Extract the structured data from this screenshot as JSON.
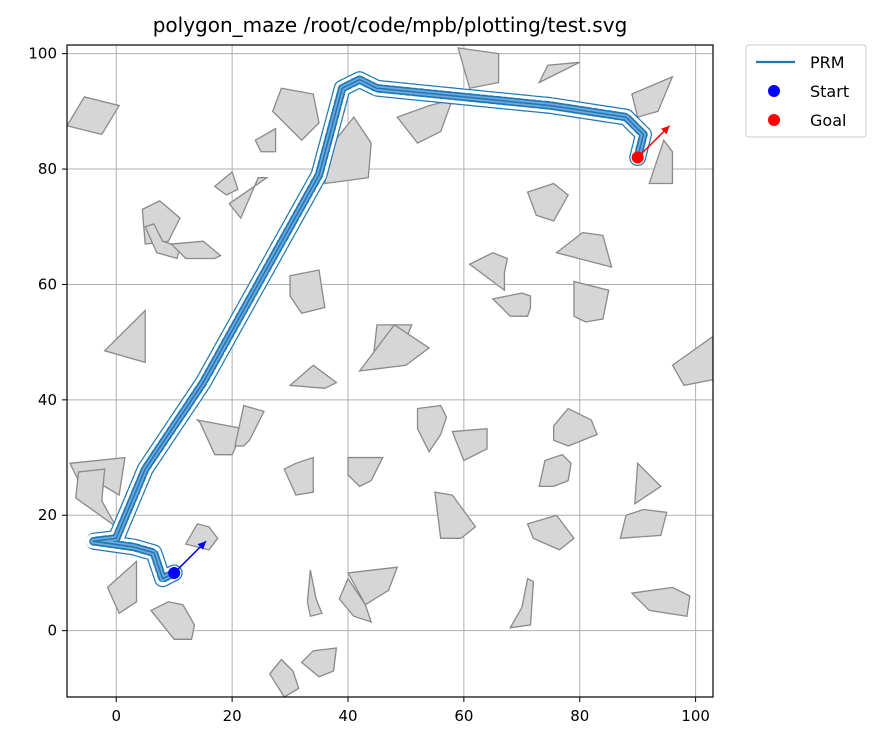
{
  "chart_data": {
    "type": "scatter",
    "title": "polygon_maze /root/code/mpb/plotting/test.svg",
    "xlabel": "",
    "ylabel": "",
    "xlim": [
      -8.5,
      103
    ],
    "ylim": [
      -11.5,
      101.5
    ],
    "xticks": [
      0,
      20,
      40,
      60,
      80,
      100
    ],
    "yticks": [
      0,
      20,
      40,
      60,
      80,
      100
    ],
    "grid": true,
    "legend_position": "outside-top-right",
    "colors": {
      "path": "#1f77b4",
      "path_halo": "#6fa8dc",
      "start": "#0000ff",
      "goal": "#ff0000",
      "obstacle_fill": "#d6d6d6",
      "obstacle_edge": "#8a8a8a",
      "grid": "#b0b0b0"
    },
    "series": [
      {
        "name": "PRM",
        "kind": "line",
        "x": [
          10,
          8,
          6.5,
          3,
          -4,
          0,
          5,
          15,
          25,
          35,
          39,
          42,
          45,
          60,
          75,
          88,
          91,
          90
        ],
        "y": [
          10,
          9,
          13.5,
          14.5,
          15.5,
          16,
          28,
          43,
          61,
          79,
          94,
          95.5,
          94,
          92.5,
          91,
          89,
          86,
          82
        ]
      },
      {
        "name": "Start",
        "kind": "point",
        "x": [
          10
        ],
        "y": [
          10
        ]
      },
      {
        "name": "Goal",
        "kind": "point",
        "x": [
          90
        ],
        "y": [
          82
        ]
      }
    ],
    "arrows": [
      {
        "from": [
          10,
          10
        ],
        "to": [
          15.5,
          15.5
        ],
        "color": "#0000ff"
      },
      {
        "from": [
          90,
          82
        ],
        "to": [
          95.5,
          87.5
        ],
        "color": "#ff0000"
      }
    ],
    "obstacles": [
      [
        [
          -8.5,
          87.5
        ],
        [
          -5.5,
          92.5
        ],
        [
          0.5,
          91
        ],
        [
          -2.5,
          86
        ]
      ],
      [
        [
          27,
          90
        ],
        [
          28.5,
          94
        ],
        [
          34,
          93
        ],
        [
          35,
          88
        ],
        [
          32,
          85
        ]
      ],
      [
        [
          24,
          85
        ],
        [
          25,
          83
        ],
        [
          27.5,
          83
        ],
        [
          27.5,
          87
        ]
      ],
      [
        [
          54,
          91
        ],
        [
          58,
          92
        ],
        [
          56,
          86.5
        ],
        [
          52,
          84.5
        ],
        [
          48.5,
          89
        ]
      ],
      [
        [
          59,
          101
        ],
        [
          66,
          100
        ],
        [
          66,
          95
        ],
        [
          61,
          94
        ]
      ],
      [
        [
          73,
          95
        ],
        [
          74.5,
          98
        ],
        [
          80,
          98.5
        ]
      ],
      [
        [
          89,
          93
        ],
        [
          90,
          89
        ],
        [
          93.5,
          90
        ],
        [
          96,
          96
        ]
      ],
      [
        [
          37,
          84
        ],
        [
          41,
          89
        ],
        [
          44,
          84.5
        ],
        [
          43.5,
          78.5
        ],
        [
          36,
          77.5
        ]
      ],
      [
        [
          92,
          77.5
        ],
        [
          96,
          77.5
        ],
        [
          96,
          83
        ],
        [
          94.5,
          85
        ]
      ],
      [
        [
          17,
          77
        ],
        [
          20,
          79.5
        ],
        [
          21,
          76.5
        ],
        [
          19,
          75.5
        ]
      ],
      [
        [
          19.5,
          74
        ],
        [
          26,
          78.5
        ],
        [
          24.5,
          78.5
        ],
        [
          21.5,
          71.5
        ]
      ],
      [
        [
          71,
          76
        ],
        [
          75.5,
          77.5
        ],
        [
          78,
          75.5
        ],
        [
          75.5,
          71
        ],
        [
          72.5,
          72
        ]
      ],
      [
        [
          5,
          67
        ],
        [
          9,
          67.5
        ],
        [
          11,
          71.5
        ],
        [
          7.5,
          74.5
        ],
        [
          4.5,
          73
        ]
      ],
      [
        [
          5,
          70
        ],
        [
          6.5,
          70.5
        ],
        [
          8,
          67.5
        ],
        [
          11,
          66.5
        ],
        [
          10.5,
          64.5
        ],
        [
          7,
          65.5
        ]
      ],
      [
        [
          9.5,
          67
        ],
        [
          15,
          67.5
        ],
        [
          18,
          65
        ],
        [
          17,
          64.5
        ],
        [
          12,
          64.5
        ]
      ],
      [
        [
          61,
          63.5
        ],
        [
          65,
          65.5
        ],
        [
          67.5,
          64.5
        ],
        [
          67,
          62
        ],
        [
          67,
          59
        ]
      ],
      [
        [
          76,
          65.5
        ],
        [
          80.5,
          69
        ],
        [
          84,
          68.5
        ],
        [
          85.5,
          63
        ]
      ],
      [
        [
          30,
          61.5
        ],
        [
          35,
          62.5
        ],
        [
          36,
          56
        ],
        [
          32,
          55
        ],
        [
          30,
          58
        ]
      ],
      [
        [
          65,
          57.5
        ],
        [
          70,
          58.5
        ],
        [
          71.5,
          58
        ],
        [
          71.5,
          56
        ],
        [
          71,
          54.5
        ],
        [
          68,
          54.5
        ]
      ],
      [
        [
          79,
          60.5
        ],
        [
          85,
          59
        ],
        [
          84,
          54
        ],
        [
          81,
          53.5
        ],
        [
          79,
          54.5
        ]
      ],
      [
        [
          -2,
          48.5
        ],
        [
          5,
          55.5
        ],
        [
          5,
          46.5
        ]
      ],
      [
        [
          45,
          53
        ],
        [
          51,
          53
        ],
        [
          49,
          48
        ],
        [
          44.5,
          48.5
        ]
      ],
      [
        [
          42,
          45
        ],
        [
          50,
          46
        ],
        [
          54,
          49
        ],
        [
          48,
          53
        ]
      ],
      [
        [
          30,
          42.5
        ],
        [
          34,
          46
        ],
        [
          38,
          43
        ],
        [
          36,
          42
        ]
      ],
      [
        [
          96,
          46
        ],
        [
          103,
          51
        ],
        [
          103,
          43.5
        ],
        [
          98,
          42.5
        ]
      ],
      [
        [
          52,
          38.5
        ],
        [
          56,
          39
        ],
        [
          57,
          37
        ],
        [
          56,
          34
        ],
        [
          54,
          31
        ],
        [
          52,
          35
        ]
      ],
      [
        [
          14.5,
          36
        ],
        [
          17,
          30.5
        ],
        [
          20,
          30.5
        ],
        [
          22,
          35
        ],
        [
          14,
          36.5
        ]
      ],
      [
        [
          20.5,
          32
        ],
        [
          22,
          39
        ],
        [
          25.5,
          38
        ],
        [
          23,
          33
        ],
        [
          22,
          32
        ]
      ],
      [
        [
          75.5,
          35.5
        ],
        [
          78,
          38.5
        ],
        [
          82,
          36.5
        ],
        [
          83,
          34
        ],
        [
          78,
          32
        ],
        [
          75.5,
          33
        ]
      ],
      [
        [
          58,
          34.5
        ],
        [
          64,
          35
        ],
        [
          64,
          31.5
        ],
        [
          60,
          29.5
        ]
      ],
      [
        [
          -8,
          29
        ],
        [
          1.5,
          30
        ],
        [
          0.5,
          23.5
        ],
        [
          -2,
          25
        ],
        [
          -6.5,
          26
        ]
      ],
      [
        [
          -7,
          23
        ],
        [
          -6.5,
          27.5
        ],
        [
          -2,
          28
        ],
        [
          -2.5,
          22.5
        ],
        [
          0,
          18
        ]
      ],
      [
        [
          40,
          30
        ],
        [
          46,
          30
        ],
        [
          44,
          26
        ],
        [
          42,
          25
        ],
        [
          40,
          27
        ]
      ],
      [
        [
          29,
          28
        ],
        [
          31,
          29
        ],
        [
          34,
          30
        ],
        [
          34,
          24
        ],
        [
          31,
          23.5
        ]
      ],
      [
        [
          74,
          29.5
        ],
        [
          77,
          30.5
        ],
        [
          78.5,
          29
        ],
        [
          78,
          26
        ],
        [
          75.5,
          25
        ],
        [
          73,
          25
        ]
      ],
      [
        [
          90,
          29
        ],
        [
          94,
          25
        ],
        [
          89.5,
          22
        ]
      ],
      [
        [
          55,
          24
        ],
        [
          58,
          23.5
        ],
        [
          62,
          18
        ],
        [
          59.5,
          16
        ],
        [
          56,
          16
        ]
      ],
      [
        [
          71,
          18.5
        ],
        [
          76,
          20
        ],
        [
          79,
          16
        ],
        [
          76.5,
          14
        ],
        [
          72,
          16
        ]
      ],
      [
        [
          87,
          16
        ],
        [
          88,
          20
        ],
        [
          91,
          21
        ],
        [
          95,
          20.5
        ],
        [
          94,
          16.5
        ]
      ],
      [
        [
          12,
          15
        ],
        [
          14,
          18.5
        ],
        [
          16,
          18
        ],
        [
          17.5,
          16
        ],
        [
          16,
          14
        ]
      ],
      [
        [
          -1.5,
          7.5
        ],
        [
          3.5,
          12
        ],
        [
          3.5,
          5
        ],
        [
          0.5,
          3
        ]
      ],
      [
        [
          6,
          3.5
        ],
        [
          9,
          5
        ],
        [
          11.5,
          4.5
        ],
        [
          13.5,
          1
        ],
        [
          13,
          -1.5
        ],
        [
          10,
          -1.5
        ]
      ],
      [
        [
          40,
          10
        ],
        [
          48.5,
          11
        ],
        [
          47,
          7
        ],
        [
          43,
          4.5
        ]
      ],
      [
        [
          40,
          9
        ],
        [
          43,
          4.5
        ],
        [
          44,
          1.5
        ],
        [
          41,
          2.5
        ],
        [
          38.5,
          5.5
        ]
      ],
      [
        [
          33.5,
          10.5
        ],
        [
          34.5,
          5.5
        ],
        [
          35.5,
          3
        ],
        [
          33.5,
          2.5
        ],
        [
          33,
          5
        ]
      ],
      [
        [
          70,
          4
        ],
        [
          71,
          9
        ],
        [
          72,
          8.5
        ],
        [
          71.5,
          1
        ],
        [
          68,
          0.5
        ]
      ],
      [
        [
          89,
          6.5
        ],
        [
          96,
          7.5
        ],
        [
          99,
          6
        ],
        [
          98.5,
          2.5
        ],
        [
          92,
          3.5
        ]
      ],
      [
        [
          26.5,
          -7.5
        ],
        [
          28.5,
          -5
        ],
        [
          30.5,
          -7
        ],
        [
          31.5,
          -10
        ],
        [
          29,
          -11.5
        ]
      ],
      [
        [
          32,
          -5.5
        ],
        [
          35,
          -8
        ],
        [
          37.5,
          -7
        ],
        [
          38,
          -3
        ],
        [
          34,
          -3.5
        ]
      ]
    ]
  }
}
